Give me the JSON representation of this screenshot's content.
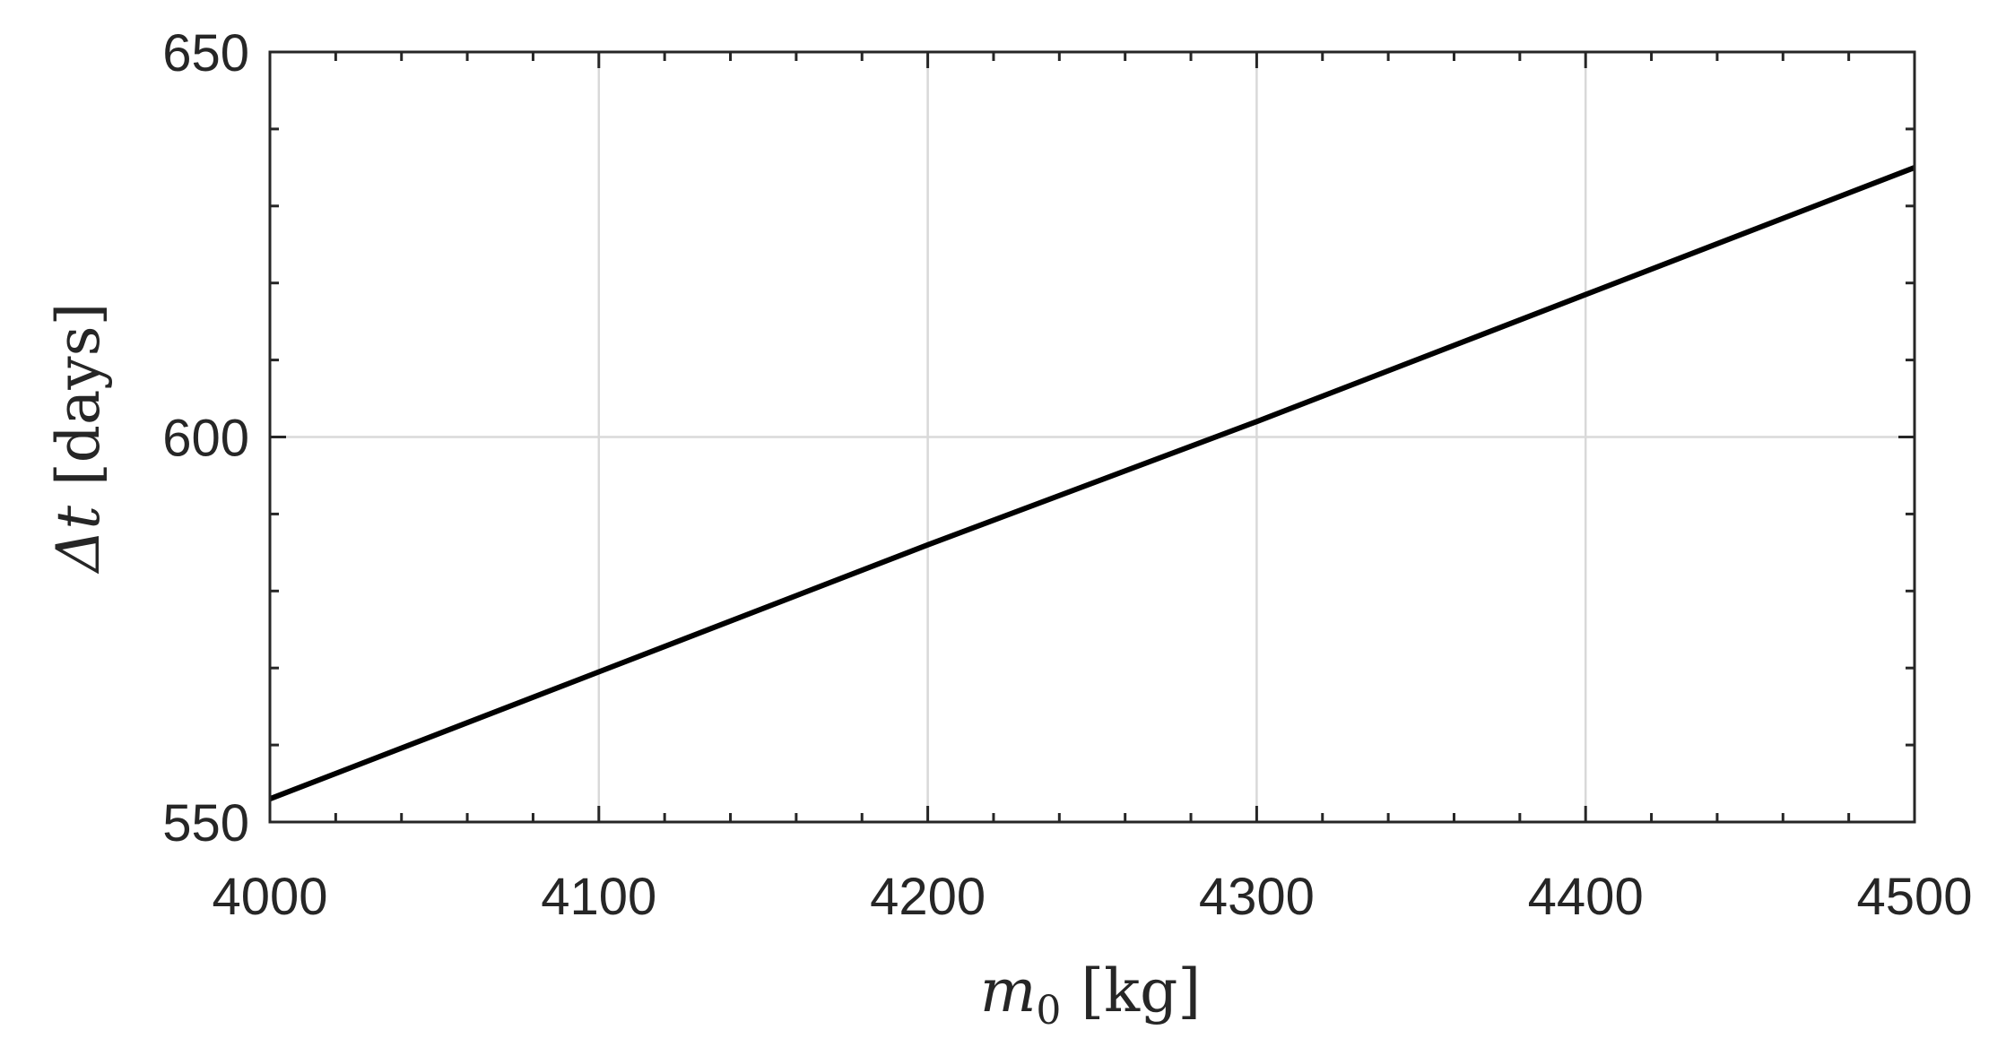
{
  "chart_data": {
    "type": "line",
    "xlabel": "m0 [kg]",
    "ylabel": "Δt [days]",
    "xlabel_parts": {
      "symbol": "m",
      "subscript": "0",
      "unit": "[kg]"
    },
    "ylabel_parts": {
      "symbol": "Δt",
      "unit": "[days]"
    },
    "xlim": [
      4000,
      4500
    ],
    "ylim": [
      550,
      650
    ],
    "xticks": [
      4000,
      4100,
      4200,
      4300,
      4400,
      4500
    ],
    "yticks": [
      550,
      600,
      650
    ],
    "xtick_labels": [
      "4000",
      "4100",
      "4200",
      "4300",
      "4400",
      "4500"
    ],
    "ytick_labels": [
      "550",
      "600",
      "650"
    ],
    "grid": true,
    "series": [
      {
        "x": [
          4000,
          4100,
          4200,
          4300,
          4400,
          4500
        ],
        "values": [
          553,
          569.5,
          586,
          602,
          618.5,
          635
        ]
      }
    ],
    "colors": {
      "line": "#000000",
      "axes": "#262626",
      "grid": "#d9d9d9",
      "text": "#262626"
    }
  }
}
